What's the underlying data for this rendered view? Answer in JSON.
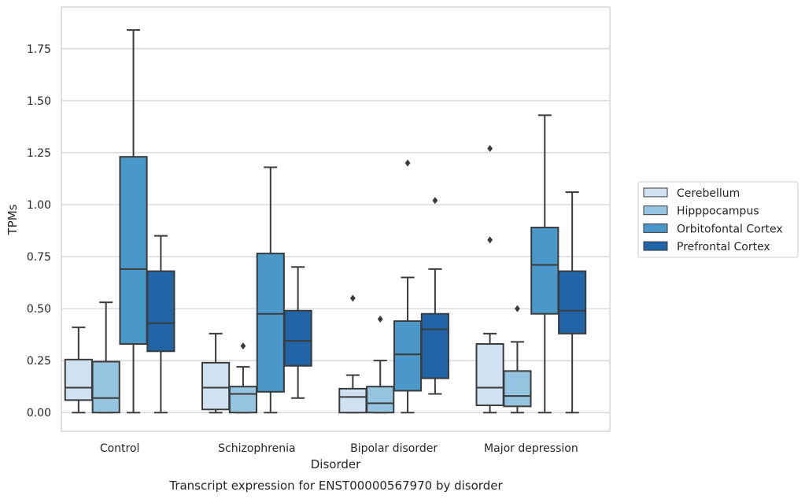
{
  "chart_data": {
    "type": "box",
    "xlabel": "Disorder",
    "ylabel": "TPMs",
    "caption": "Transcript expression for ENST00000567970 by disorder",
    "ylim": [
      -0.09,
      1.95
    ],
    "yticks": [
      "0.00",
      "0.25",
      "0.50",
      "0.75",
      "1.00",
      "1.25",
      "1.50",
      "1.75"
    ],
    "grid": "horizontal",
    "legend_position": "right",
    "categories": [
      "Control",
      "Schizophrenia",
      "Bipolar disorder",
      "Major depression"
    ],
    "series": [
      {
        "name": "Cerebellum",
        "color": "#d0e1f2",
        "boxes": [
          {
            "min": 0.0,
            "q1": 0.06,
            "median": 0.12,
            "q3": 0.255,
            "max": 0.41,
            "outliers": []
          },
          {
            "min": 0.0,
            "q1": 0.015,
            "median": 0.12,
            "q3": 0.24,
            "max": 0.38,
            "outliers": []
          },
          {
            "min": 0.0,
            "q1": 0.0,
            "median": 0.075,
            "q3": 0.115,
            "max": 0.18,
            "outliers": [
              0.55
            ]
          },
          {
            "min": 0.0,
            "q1": 0.035,
            "median": 0.12,
            "q3": 0.33,
            "max": 0.38,
            "outliers": [
              0.83,
              1.27
            ]
          }
        ]
      },
      {
        "name": "Hipppocampus",
        "color": "#94c4df",
        "boxes": [
          {
            "min": 0.0,
            "q1": 0.0,
            "median": 0.07,
            "q3": 0.245,
            "max": 0.53,
            "outliers": []
          },
          {
            "min": 0.0,
            "q1": 0.0,
            "median": 0.09,
            "q3": 0.125,
            "max": 0.22,
            "outliers": [
              0.32
            ]
          },
          {
            "min": 0.0,
            "q1": 0.0,
            "median": 0.045,
            "q3": 0.125,
            "max": 0.25,
            "outliers": [
              0.45
            ]
          },
          {
            "min": 0.0,
            "q1": 0.03,
            "median": 0.08,
            "q3": 0.2,
            "max": 0.34,
            "outliers": [
              0.5
            ]
          }
        ]
      },
      {
        "name": "Orbitofontal Cortex",
        "color": "#4a98c9",
        "boxes": [
          {
            "min": 0.0,
            "q1": 0.33,
            "median": 0.69,
            "q3": 1.23,
            "max": 1.84,
            "outliers": []
          },
          {
            "min": 0.0,
            "q1": 0.1,
            "median": 0.475,
            "q3": 0.765,
            "max": 1.18,
            "outliers": []
          },
          {
            "min": 0.0,
            "q1": 0.105,
            "median": 0.28,
            "q3": 0.44,
            "max": 0.65,
            "outliers": [
              1.2
            ]
          },
          {
            "min": 0.0,
            "q1": 0.475,
            "median": 0.71,
            "q3": 0.89,
            "max": 1.43,
            "outliers": []
          }
        ]
      },
      {
        "name": "Prefrontal Cortex",
        "color": "#2264a8",
        "boxes": [
          {
            "min": 0.0,
            "q1": 0.295,
            "median": 0.43,
            "q3": 0.68,
            "max": 0.85,
            "outliers": []
          },
          {
            "min": 0.07,
            "q1": 0.225,
            "median": 0.345,
            "q3": 0.49,
            "max": 0.7,
            "outliers": []
          },
          {
            "min": 0.09,
            "q1": 0.165,
            "median": 0.4,
            "q3": 0.475,
            "max": 0.69,
            "outliers": [
              1.02
            ]
          },
          {
            "min": 0.0,
            "q1": 0.38,
            "median": 0.49,
            "q3": 0.68,
            "max": 1.06,
            "outliers": []
          }
        ]
      }
    ]
  }
}
